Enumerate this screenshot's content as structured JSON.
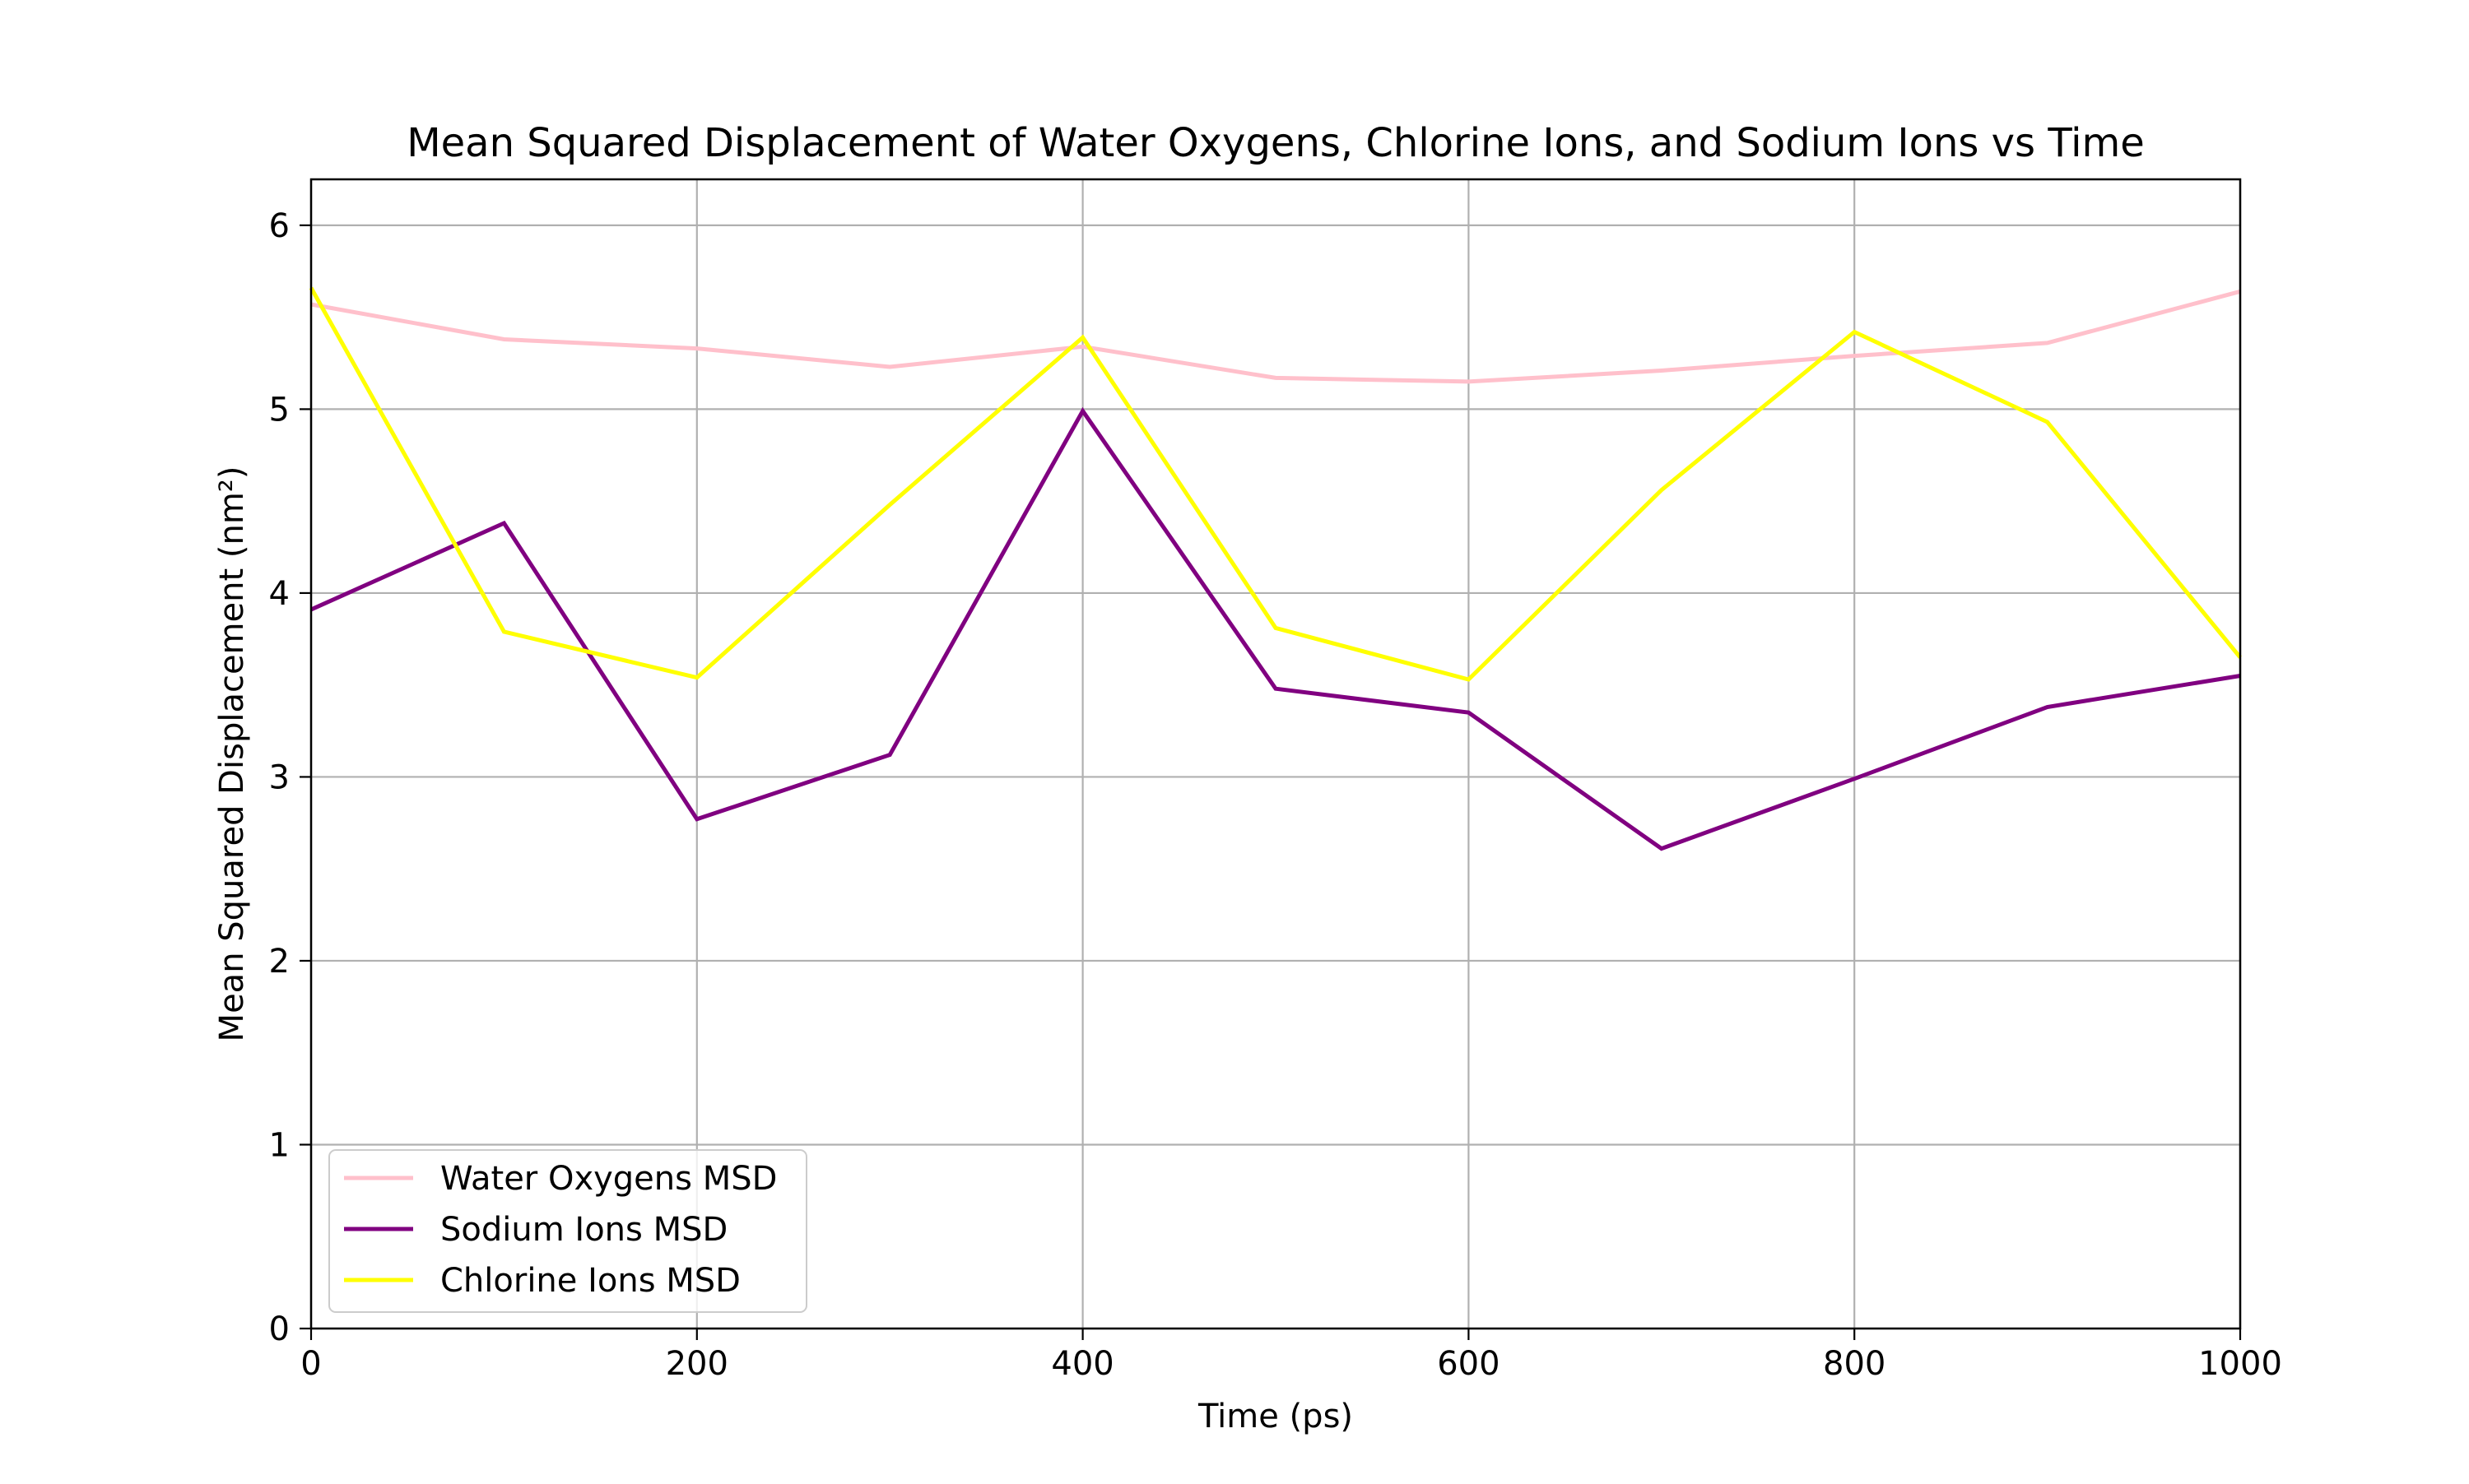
{
  "chart_data": {
    "type": "line",
    "title": "Mean Squared Displacement of Water Oxygens, Chlorine Ions, and Sodium Ions vs Time",
    "xlabel": "Time (ps)",
    "ylabel": "Mean Squared Displacement (nm²)",
    "xlim": [
      0,
      1000
    ],
    "ylim": [
      0,
      6.25
    ],
    "xticks": [
      0,
      200,
      400,
      600,
      800,
      1000
    ],
    "yticks": [
      0,
      1,
      2,
      3,
      4,
      5,
      6
    ],
    "grid": true,
    "legend_position": "lower-left",
    "x": [
      0,
      100,
      200,
      300,
      400,
      500,
      600,
      700,
      800,
      900,
      1000
    ],
    "series": [
      {
        "name": "Water Oxygens MSD",
        "color": "#ffc0cb",
        "values": [
          5.57,
          5.38,
          5.33,
          5.23,
          5.34,
          5.17,
          5.15,
          5.21,
          5.29,
          5.36,
          5.64
        ]
      },
      {
        "name": "Sodium Ions MSD",
        "color": "#800080",
        "values": [
          3.91,
          4.38,
          2.77,
          3.12,
          4.99,
          3.48,
          3.35,
          2.61,
          2.99,
          3.38,
          3.55
        ]
      },
      {
        "name": "Chlorine Ions MSD",
        "color": "#ffff00",
        "values": [
          5.66,
          3.79,
          3.54,
          4.48,
          5.39,
          3.81,
          3.53,
          4.56,
          5.42,
          4.93,
          3.65
        ]
      }
    ]
  }
}
